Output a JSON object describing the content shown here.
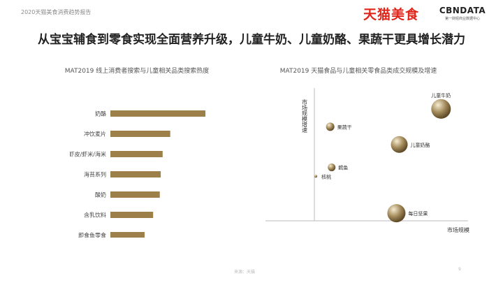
{
  "header": {
    "report_tag": "2020天猫美食消费趋势报告",
    "logo_tmall": "天猫美食",
    "logo_cbn": "CBNDATA",
    "logo_cbn_sub": "第一财经商业数据中心"
  },
  "headline": "从宝宝辅食到零食实现全面营养升级，儿童牛奶、儿童奶酪、果蔬干更具增长潜力",
  "colors": {
    "bar": "#9c7f49",
    "bubble": "#a48b5c",
    "axis": "#bbbbbb"
  },
  "chart_data": [
    {
      "type": "bar",
      "orientation": "horizontal",
      "title": "MAT2019 线上消费者搜索与儿童相关品类搜索热度",
      "categories": [
        "奶酪",
        "冲饮麦片",
        "虾皮/虾米/海米",
        "海苔系列",
        "酸奶",
        "含乳饮料",
        "即食鱼零食"
      ],
      "values": [
        100,
        63,
        55,
        53,
        52,
        45,
        36
      ],
      "xlim": [
        0,
        100
      ],
      "axis_labels_shown": false,
      "grid": false
    },
    {
      "type": "scatter",
      "subtype": "bubble",
      "title": "MAT2019 天猫食品与儿童相关零食品类成交规模及增速",
      "xlabel": "市场规模",
      "ylabel": "市场规模增速",
      "xlim": [
        0,
        100
      ],
      "ylim": [
        0,
        100
      ],
      "points": [
        {
          "label": "儿童牛奶",
          "x": 88,
          "y": 88,
          "size": 28
        },
        {
          "label": "果蔬干",
          "x": 11,
          "y": 74,
          "size": 12
        },
        {
          "label": "儿童奶酪",
          "x": 59,
          "y": 60,
          "size": 24
        },
        {
          "label": "鳕鱼",
          "x": 12,
          "y": 42,
          "size": 11
        },
        {
          "label": "核桃",
          "x": 1,
          "y": 35,
          "size": 4
        },
        {
          "label": "每日坚果",
          "x": 57,
          "y": 6,
          "size": 26
        }
      ],
      "axis_ticks_shown": false,
      "grid": false
    }
  ],
  "footer": {
    "note": "来源：天猫",
    "page": "9"
  }
}
